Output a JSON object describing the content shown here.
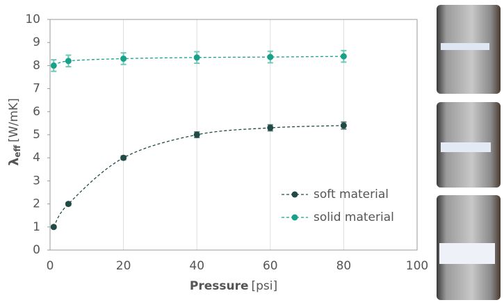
{
  "chart_data": {
    "type": "line",
    "ylabel": {
      "symbol": "λ",
      "subscript": "eff",
      "unit": "[W/mK]"
    },
    "xlabel": {
      "name": "Pressure",
      "unit": "[psi]"
    },
    "xlim": [
      0,
      100
    ],
    "xticks": [
      0,
      20,
      40,
      60,
      80,
      100
    ],
    "ylim": [
      0,
      10
    ],
    "yticks": [
      0,
      1,
      2,
      3,
      4,
      5,
      6,
      7,
      8,
      9,
      10
    ],
    "grid": "x",
    "legend": "lower right",
    "series": [
      {
        "name": "soft material",
        "color": "#1f4a45",
        "error_color": "#5f7d79",
        "x": [
          1,
          5,
          20,
          40,
          60,
          80
        ],
        "values": [
          1,
          2,
          4,
          5,
          5.3,
          5.4
        ],
        "errors": [
          0.05,
          0.05,
          0.08,
          0.12,
          0.13,
          0.15
        ]
      },
      {
        "name": "solid material",
        "color": "#17a188",
        "error_color": "#6cc9b5",
        "x": [
          1,
          5,
          20,
          40,
          60,
          80
        ],
        "values": [
          8,
          8.2,
          8.3,
          8.35,
          8.37,
          8.4
        ],
        "errors": [
          0.25,
          0.25,
          0.25,
          0.25,
          0.25,
          0.25
        ]
      }
    ]
  }
}
